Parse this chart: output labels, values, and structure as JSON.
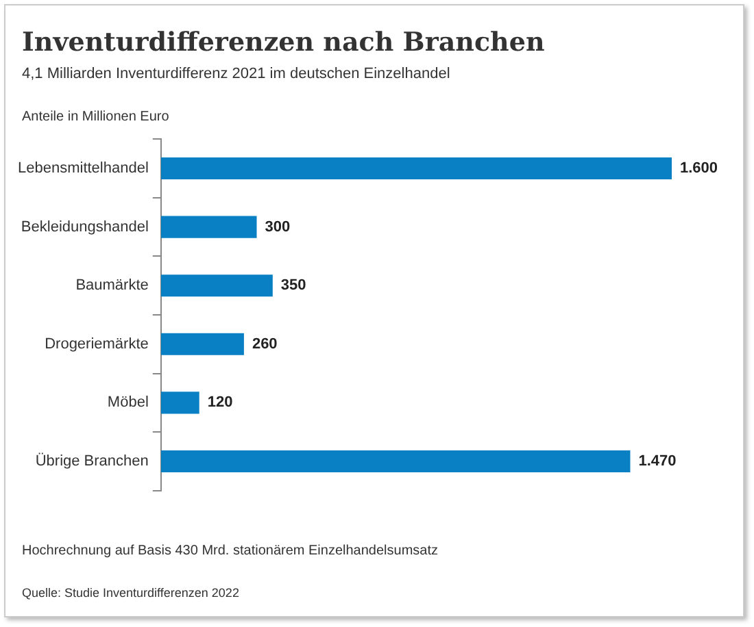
{
  "chart_data": {
    "type": "bar",
    "orientation": "horizontal",
    "title": "Inventurdifferenzen nach Branchen",
    "subtitle": "4,1 Milliarden Inventurdifferenz 2021 im deutschen Einzelhandel",
    "categories": [
      "Lebensmittelhandel",
      "Bekleidungshandel",
      "Baumärkte",
      "Drogeriemärkte",
      "Möbel",
      "Übrige Branchen"
    ],
    "values": [
      1600,
      300,
      350,
      260,
      120,
      1470
    ],
    "value_labels": [
      "1.600",
      "300",
      "350",
      "260",
      "120",
      "1.470"
    ],
    "color": "#0a80c4",
    "annotations": [
      "Anteile in Millionen Euro",
      "Hochrechnung auf Basis 430 Mrd. stationärem Einzelhandelsumsatz",
      "Quelle: Studie Inventurdifferenzen 2022"
    ],
    "legend": false
  }
}
